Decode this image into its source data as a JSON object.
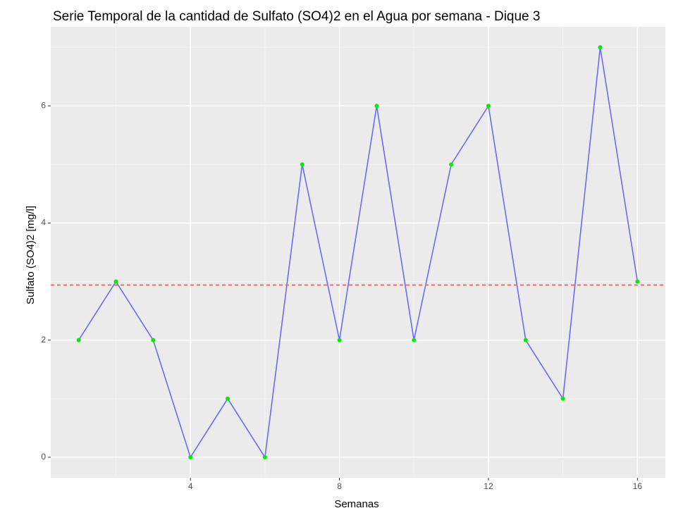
{
  "chart_data": {
    "type": "line",
    "title": "Serie Temporal de la cantidad de Sulfato (SO4)2 en el Agua por semana - Dique 3",
    "x_label": "Semanas",
    "y_label": "Sulfato (SO4)2  [mg/l]",
    "x": [
      1,
      2,
      3,
      4,
      5,
      6,
      7,
      8,
      9,
      10,
      11,
      12,
      13,
      14,
      15,
      16
    ],
    "series": [
      {
        "name": "Sulfato",
        "color": "#6b6bf5",
        "point_color": "#00ee00",
        "values": [
          2,
          3,
          2,
          0,
          1,
          0,
          5,
          2,
          6,
          2,
          5,
          6,
          2,
          1,
          7,
          3
        ]
      }
    ],
    "hline": {
      "value": 2.94,
      "color": "#f26b6b"
    },
    "xlim": [
      0.25,
      16.75
    ],
    "xticks": [
      4,
      8,
      12,
      16
    ],
    "ylim": [
      -0.35,
      7.35
    ],
    "yticks": [
      0,
      2,
      4,
      6
    ],
    "grid": true
  }
}
